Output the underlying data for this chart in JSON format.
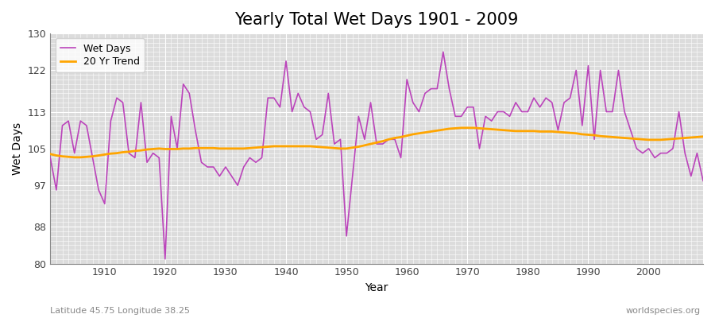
{
  "title": "Yearly Total Wet Days 1901 - 2009",
  "xlabel": "Year",
  "ylabel": "Wet Days",
  "subtitle": "Latitude 45.75 Longitude 38.25",
  "watermark": "worldspecies.org",
  "ylim": [
    80,
    130
  ],
  "yticks": [
    80,
    88,
    97,
    105,
    113,
    122,
    130
  ],
  "xlim": [
    1901,
    2009
  ],
  "xticks": [
    1910,
    1920,
    1930,
    1940,
    1950,
    1960,
    1970,
    1980,
    1990,
    2000
  ],
  "bg_color": "#dcdcdc",
  "line_color": "#bb44bb",
  "trend_color": "#ffa500",
  "years": [
    1901,
    1902,
    1903,
    1904,
    1905,
    1906,
    1907,
    1908,
    1909,
    1910,
    1911,
    1912,
    1913,
    1914,
    1915,
    1916,
    1917,
    1918,
    1919,
    1920,
    1921,
    1922,
    1923,
    1924,
    1925,
    1926,
    1927,
    1928,
    1929,
    1930,
    1931,
    1932,
    1933,
    1934,
    1935,
    1936,
    1937,
    1938,
    1939,
    1940,
    1941,
    1942,
    1943,
    1944,
    1945,
    1946,
    1947,
    1948,
    1949,
    1950,
    1951,
    1952,
    1953,
    1954,
    1955,
    1956,
    1957,
    1958,
    1959,
    1960,
    1961,
    1962,
    1963,
    1964,
    1965,
    1966,
    1967,
    1968,
    1969,
    1970,
    1971,
    1972,
    1973,
    1974,
    1975,
    1976,
    1977,
    1978,
    1979,
    1980,
    1981,
    1982,
    1983,
    1984,
    1985,
    1986,
    1987,
    1988,
    1989,
    1990,
    1991,
    1992,
    1993,
    1994,
    1995,
    1996,
    1997,
    1998,
    1999,
    2000,
    2001,
    2002,
    2003,
    2004,
    2005,
    2006,
    2007,
    2008,
    2009
  ],
  "wet_days": [
    103,
    96,
    110,
    111,
    104,
    111,
    110,
    103,
    96,
    93,
    111,
    116,
    115,
    104,
    103,
    115,
    102,
    104,
    103,
    81,
    112,
    105,
    119,
    117,
    109,
    102,
    101,
    101,
    99,
    101,
    99,
    97,
    101,
    103,
    102,
    103,
    116,
    116,
    114,
    124,
    113,
    117,
    114,
    113,
    107,
    108,
    117,
    106,
    107,
    86,
    99,
    112,
    107,
    115,
    106,
    106,
    107,
    107,
    103,
    120,
    115,
    113,
    117,
    118,
    118,
    126,
    118,
    112,
    112,
    114,
    114,
    105,
    112,
    111,
    113,
    113,
    112,
    115,
    113,
    113,
    116,
    114,
    116,
    115,
    109,
    115,
    116,
    122,
    110,
    123,
    107,
    122,
    113,
    113,
    122,
    113,
    109,
    105,
    104,
    105,
    103,
    104,
    104,
    105,
    113,
    104,
    99,
    104,
    98
  ],
  "trend": [
    103.8,
    103.5,
    103.3,
    103.2,
    103.1,
    103.1,
    103.2,
    103.3,
    103.5,
    103.7,
    103.9,
    104.0,
    104.2,
    104.3,
    104.5,
    104.6,
    104.8,
    104.9,
    105.0,
    104.9,
    104.9,
    104.9,
    105.0,
    105.0,
    105.1,
    105.1,
    105.1,
    105.1,
    105.0,
    105.0,
    105.0,
    105.0,
    105.0,
    105.1,
    105.2,
    105.3,
    105.4,
    105.5,
    105.5,
    105.5,
    105.5,
    105.5,
    105.5,
    105.5,
    105.4,
    105.3,
    105.2,
    105.1,
    105.0,
    105.0,
    105.2,
    105.4,
    105.7,
    106.0,
    106.3,
    106.6,
    107.0,
    107.3,
    107.5,
    107.8,
    108.1,
    108.3,
    108.5,
    108.7,
    108.9,
    109.1,
    109.3,
    109.4,
    109.5,
    109.5,
    109.5,
    109.4,
    109.3,
    109.2,
    109.1,
    109.0,
    108.9,
    108.8,
    108.8,
    108.8,
    108.8,
    108.7,
    108.7,
    108.7,
    108.6,
    108.5,
    108.4,
    108.3,
    108.1,
    108.0,
    107.9,
    107.7,
    107.6,
    107.5,
    107.4,
    107.3,
    107.2,
    107.1,
    107.0,
    106.9,
    106.9,
    106.9,
    107.0,
    107.1,
    107.2,
    107.3,
    107.4,
    107.5,
    107.6
  ]
}
